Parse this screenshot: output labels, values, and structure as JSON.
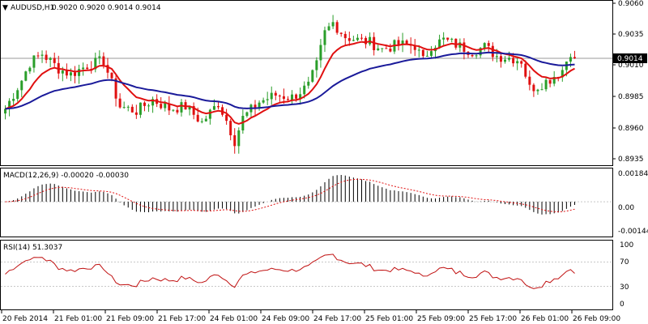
{
  "header": {
    "symbol_label": "AUDUSD,H1",
    "ohlc_label": "0.9020 0.9020 0.9014 0.9014"
  },
  "colors": {
    "bull": "#2a9e2a",
    "bear": "#e01010",
    "ema_fast": "#e01010",
    "ema_slow": "#1a1a9a",
    "macd_hist": "#000000",
    "macd_signal": "#e01010",
    "rsi": "#c01010",
    "level_line": "#9a9a9a",
    "price_box_bg": "#000000",
    "price_box_text": "#ffffff"
  },
  "chart_data": [
    {
      "type": "candlestick",
      "title": "AUDUSD,H1",
      "ohlc_current": "0.9020 0.9020 0.9014 0.9014",
      "ylim": [
        0.9925,
        0.906
      ],
      "ticks": [
        "0.9060",
        "0.9035",
        "0.9010",
        "0.8985",
        "0.8960",
        "0.8935"
      ],
      "current_price": "0.9014",
      "indicators": [
        "fast moving average (red)",
        "slow moving average (navy)"
      ],
      "candles_by_session": [
        {
          "session": "20 Feb 2014",
          "range_low": 0.895,
          "range_high": 0.9015
        },
        {
          "session": "21 Feb 01:00",
          "range_low": 0.8975,
          "range_high": 0.9025
        },
        {
          "session": "21 Feb 09:00",
          "range_low": 0.8945,
          "range_high": 0.901
        },
        {
          "session": "21 Feb 17:00",
          "range_low": 0.8945,
          "range_high": 0.8985
        },
        {
          "session": "24 Feb 01:00",
          "range_low": 0.8933,
          "range_high": 0.8975
        },
        {
          "session": "24 Feb 09:00",
          "range_low": 0.897,
          "range_high": 0.9005
        },
        {
          "session": "24 Feb 17:00",
          "range_low": 0.8995,
          "range_high": 0.905
        },
        {
          "session": "25 Feb 01:00",
          "range_low": 0.9005,
          "range_high": 0.9045
        },
        {
          "session": "25 Feb 09:00",
          "range_low": 0.9005,
          "range_high": 0.904
        },
        {
          "session": "25 Feb 17:00",
          "range_low": 0.9,
          "range_high": 0.903
        },
        {
          "session": "26 Feb 01:00",
          "range_low": 0.8965,
          "range_high": 0.9025
        }
      ]
    },
    {
      "type": "line",
      "title": "MACD(12,26,9) -0.00020 -0.00030",
      "ticks": [
        "0.00184",
        "0.00",
        "-0.00144"
      ],
      "ylim": [
        -0.0022,
        0.0021
      ]
    },
    {
      "type": "line",
      "title": "RSI(14) 51.3037",
      "ticks": [
        "100",
        "70",
        "30",
        "0"
      ],
      "ylim": [
        0,
        100
      ],
      "levels": [
        70,
        30
      ]
    }
  ],
  "x_axis": {
    "labels": [
      "20 Feb 2014",
      "21 Feb 01:00",
      "21 Feb 09:00",
      "21 Feb 17:00",
      "24 Feb 01:00",
      "24 Feb 09:00",
      "24 Feb 17:00",
      "25 Feb 01:00",
      "25 Feb 09:00",
      "25 Feb 17:00",
      "26 Feb 01:00",
      "26 Feb 09:00"
    ]
  },
  "price_axis": {
    "ticks": [
      "0.9060",
      "0.9035",
      "0.9010",
      "0.8985",
      "0.8960",
      "0.8935"
    ],
    "current_price": "0.9014"
  },
  "macd": {
    "label": "MACD(12,26,9) -0.00020 -0.00030",
    "ticks": [
      "0.00184",
      "0.00",
      "-0.00144"
    ]
  },
  "rsi": {
    "label": "RSI(14) 51.3037",
    "ticks": [
      "100",
      "70",
      "30",
      "0"
    ]
  }
}
